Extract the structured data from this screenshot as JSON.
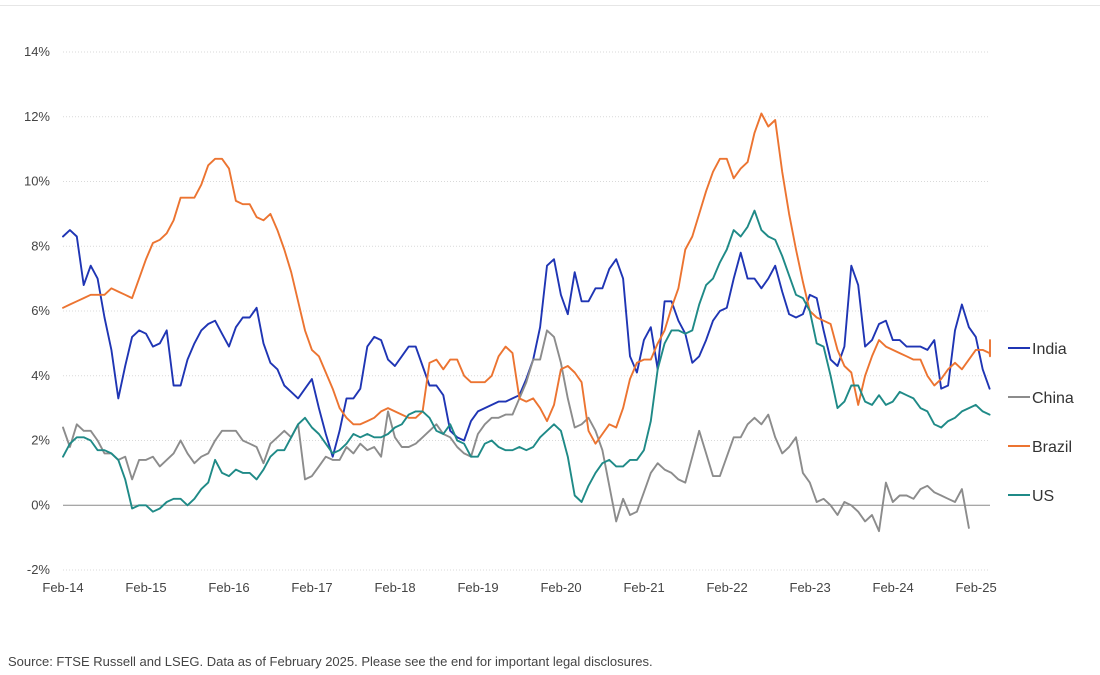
{
  "chart_data": {
    "type": "line",
    "title": "",
    "xlabel": "",
    "ylabel": "",
    "x_start": 2014.083,
    "x_step": 0.0833,
    "xlim": [
      2014.083,
      2025.25
    ],
    "ylim": [
      -2,
      14
    ],
    "yticks": [
      -2,
      0,
      2,
      4,
      6,
      8,
      10,
      12,
      14
    ],
    "ytick_labels": [
      "-2%",
      "0%",
      "2%",
      "4%",
      "6%",
      "8%",
      "10%",
      "12%",
      "14%"
    ],
    "xticks": [
      2014.083,
      2015.083,
      2016.083,
      2017.083,
      2018.083,
      2019.083,
      2020.083,
      2021.083,
      2022.083,
      2023.083,
      2024.083,
      2025.083
    ],
    "xtick_labels": [
      "Feb-14",
      "Feb-15",
      "Feb-16",
      "Feb-17",
      "Feb-18",
      "Feb-19",
      "Feb-20",
      "Feb-21",
      "Feb-22",
      "Feb-23",
      "Feb-24",
      "Feb-25"
    ],
    "grid": true,
    "legend_position": "right",
    "series": [
      {
        "name": "India",
        "color": "#1f35b4",
        "values": [
          8.3,
          8.5,
          8.3,
          6.8,
          7.4,
          7.0,
          5.8,
          4.8,
          3.3,
          4.3,
          5.2,
          5.4,
          5.3,
          4.9,
          5.0,
          5.4,
          3.7,
          3.7,
          4.5,
          5.0,
          5.4,
          5.6,
          5.7,
          5.3,
          4.9,
          5.5,
          5.8,
          5.8,
          6.1,
          5.0,
          4.4,
          4.2,
          3.7,
          3.5,
          3.3,
          3.6,
          3.9,
          3.0,
          2.2,
          1.5,
          2.3,
          3.3,
          3.3,
          3.6,
          4.9,
          5.2,
          5.1,
          4.5,
          4.3,
          4.6,
          4.9,
          4.9,
          4.3,
          3.7,
          3.7,
          3.4,
          2.3,
          2.1,
          2.0,
          2.6,
          2.9,
          3.0,
          3.1,
          3.2,
          3.2,
          3.3,
          3.4,
          3.9,
          4.5,
          5.5,
          7.4,
          7.6,
          6.5,
          5.9,
          7.2,
          6.3,
          6.3,
          6.7,
          6.7,
          7.3,
          7.6,
          7.0,
          4.6,
          4.1,
          5.1,
          5.5,
          4.2,
          6.3,
          6.3,
          5.7,
          5.3,
          4.4,
          4.6,
          5.1,
          5.7,
          6.0,
          6.1,
          7.0,
          7.8,
          7.0,
          7.0,
          6.7,
          7.0,
          7.4,
          6.6,
          5.9,
          5.8,
          5.9,
          6.5,
          6.4,
          5.4,
          4.5,
          4.3,
          4.9,
          7.4,
          6.8,
          4.9,
          5.1,
          5.6,
          5.7,
          5.1,
          5.1,
          4.9,
          4.9,
          4.9,
          4.8,
          5.1,
          3.6,
          3.7,
          5.4,
          6.2,
          5.5,
          5.2,
          4.2,
          3.6
        ]
      },
      {
        "name": "China",
        "color": "#8c8c8c",
        "values": [
          2.4,
          1.8,
          2.5,
          2.3,
          2.3,
          2.0,
          1.6,
          1.6,
          1.4,
          1.5,
          0.8,
          1.4,
          1.4,
          1.5,
          1.2,
          1.4,
          1.6,
          2.0,
          1.6,
          1.3,
          1.5,
          1.6,
          2.0,
          2.3,
          2.3,
          2.3,
          2.0,
          1.9,
          1.8,
          1.3,
          1.9,
          2.1,
          2.3,
          2.1,
          2.5,
          0.8,
          0.9,
          1.2,
          1.5,
          1.4,
          1.4,
          1.8,
          1.6,
          1.9,
          1.7,
          1.8,
          1.5,
          2.9,
          2.1,
          1.8,
          1.8,
          1.9,
          2.1,
          2.3,
          2.5,
          2.2,
          2.1,
          1.8,
          1.6,
          1.5,
          2.2,
          2.5,
          2.7,
          2.7,
          2.8,
          2.8,
          3.3,
          3.8,
          4.5,
          4.5,
          5.4,
          5.2,
          4.4,
          3.3,
          2.4,
          2.5,
          2.7,
          2.3,
          1.7,
          0.6,
          -0.5,
          0.2,
          -0.3,
          -0.2,
          0.4,
          1.0,
          1.3,
          1.1,
          1.0,
          0.8,
          0.7,
          1.5,
          2.3,
          1.6,
          0.9,
          0.9,
          1.5,
          2.1,
          2.1,
          2.5,
          2.7,
          2.5,
          2.8,
          2.1,
          1.6,
          1.8,
          2.1,
          1.0,
          0.7,
          0.1,
          0.2,
          0.0,
          -0.3,
          0.1,
          0.0,
          -0.2,
          -0.5,
          -0.3,
          -0.8,
          0.7,
          0.1,
          0.3,
          0.3,
          0.2,
          0.5,
          0.6,
          0.4,
          0.3,
          0.2,
          0.1,
          0.5,
          -0.7
        ]
      },
      {
        "name": "Brazil",
        "color": "#ec7431",
        "values": [
          6.1,
          6.2,
          6.3,
          6.4,
          6.5,
          6.5,
          6.5,
          6.7,
          6.6,
          6.5,
          6.4,
          7.0,
          7.6,
          8.1,
          8.2,
          8.4,
          8.8,
          9.5,
          9.5,
          9.5,
          9.9,
          10.5,
          10.7,
          10.7,
          10.4,
          9.4,
          9.3,
          9.3,
          8.9,
          8.8,
          9.0,
          8.5,
          7.9,
          7.2,
          6.3,
          5.4,
          4.8,
          4.6,
          4.1,
          3.6,
          3.0,
          2.7,
          2.5,
          2.5,
          2.6,
          2.7,
          2.9,
          3.0,
          2.9,
          2.8,
          2.7,
          2.7,
          2.9,
          4.4,
          4.5,
          4.2,
          4.5,
          4.5,
          4.0,
          3.8,
          3.8,
          3.8,
          4.0,
          4.6,
          4.9,
          4.7,
          3.3,
          3.2,
          3.3,
          3.0,
          2.6,
          3.1,
          4.2,
          4.3,
          4.1,
          3.8,
          2.3,
          1.9,
          2.2,
          2.5,
          2.4,
          3.0,
          3.9,
          4.4,
          4.5,
          4.5,
          5.0,
          5.4,
          6.1,
          6.7,
          7.9,
          8.3,
          9.0,
          9.7,
          10.3,
          10.7,
          10.7,
          10.1,
          10.4,
          10.6,
          11.5,
          12.1,
          11.7,
          11.9,
          10.3,
          9.0,
          7.9,
          6.9,
          6.0,
          5.8,
          5.7,
          5.6,
          4.8,
          4.3,
          4.1,
          3.1,
          4.0,
          4.6,
          5.1,
          4.9,
          4.8,
          4.7,
          4.6,
          4.5,
          4.5,
          4.0,
          3.7,
          3.9,
          4.2,
          4.4,
          4.2,
          4.5,
          4.8,
          4.8,
          4.7,
          4.6,
          5.1
        ]
      },
      {
        "name": "US",
        "color": "#1f8a87",
        "values": [
          1.5,
          1.9,
          2.1,
          2.1,
          2.0,
          1.7,
          1.7,
          1.6,
          1.4,
          0.8,
          -0.1,
          0.0,
          0.0,
          -0.2,
          -0.1,
          0.1,
          0.2,
          0.2,
          0.0,
          0.2,
          0.5,
          0.7,
          1.4,
          1.0,
          0.9,
          1.1,
          1.0,
          1.0,
          0.8,
          1.1,
          1.5,
          1.7,
          1.7,
          2.1,
          2.5,
          2.7,
          2.4,
          2.2,
          1.9,
          1.6,
          1.7,
          1.9,
          2.2,
          2.1,
          2.2,
          2.1,
          2.1,
          2.2,
          2.4,
          2.5,
          2.8,
          2.9,
          2.9,
          2.7,
          2.3,
          2.2,
          2.5,
          2.0,
          1.9,
          1.5,
          1.5,
          1.9,
          2.0,
          1.8,
          1.7,
          1.7,
          1.8,
          1.7,
          1.8,
          2.1,
          2.3,
          2.5,
          2.3,
          1.5,
          0.3,
          0.1,
          0.6,
          1.0,
          1.3,
          1.4,
          1.2,
          1.2,
          1.4,
          1.4,
          1.7,
          2.6,
          4.2,
          5.0,
          5.4,
          5.4,
          5.3,
          5.4,
          6.2,
          6.8,
          7.0,
          7.5,
          7.9,
          8.5,
          8.3,
          8.6,
          9.1,
          8.5,
          8.3,
          8.2,
          7.7,
          7.1,
          6.5,
          6.4,
          6.0,
          5.0,
          4.9,
          4.0,
          3.0,
          3.2,
          3.7,
          3.7,
          3.2,
          3.1,
          3.4,
          3.1,
          3.2,
          3.5,
          3.4,
          3.3,
          3.0,
          2.9,
          2.5,
          2.4,
          2.6,
          2.7,
          2.9,
          3.0,
          3.1,
          2.9,
          2.8
        ]
      }
    ]
  },
  "legend": [
    "India",
    "China",
    "Brazil",
    "US"
  ],
  "source": "Source: FTSE Russell and LSEG. Data as of February 2025. Please see the end for important legal disclosures."
}
